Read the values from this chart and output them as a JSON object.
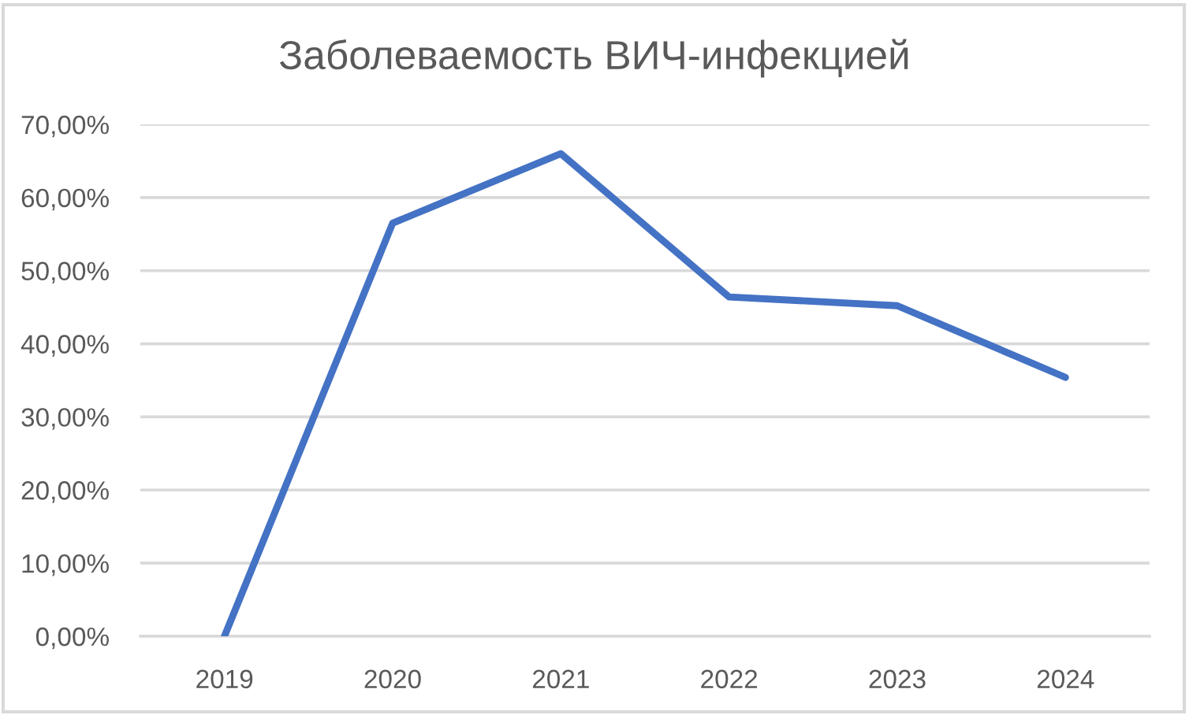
{
  "chart_data": {
    "type": "line",
    "title": "Заболеваемость ВИЧ-инфекцией",
    "categories": [
      "2019",
      "2020",
      "2021",
      "2022",
      "2023",
      "2024"
    ],
    "series": [
      {
        "color": "#4472c4",
        "values": [
          0,
          56.5,
          66.0,
          46.4,
          45.2,
          35.4
        ]
      }
    ],
    "ylim": [
      0,
      70
    ],
    "yticks": [
      {
        "value": 0,
        "label": "0,00%"
      },
      {
        "value": 10,
        "label": "10,00%"
      },
      {
        "value": 20,
        "label": "20,00%"
      },
      {
        "value": 30,
        "label": "30,00%"
      },
      {
        "value": 40,
        "label": "40,00%"
      },
      {
        "value": 50,
        "label": "50,00%"
      },
      {
        "value": 60,
        "label": "60,00%"
      },
      {
        "value": 70,
        "label": "70,00%"
      }
    ],
    "grid": "y",
    "marker": "none",
    "line_style": "solid"
  }
}
